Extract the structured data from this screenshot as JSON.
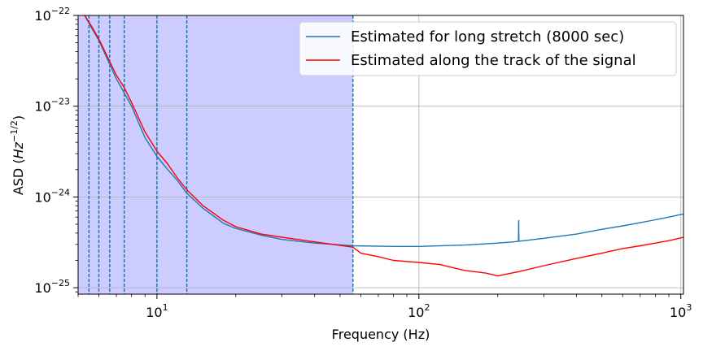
{
  "chart_data": {
    "type": "line",
    "xlabel": "Frequency (Hz)",
    "ylabel": {
      "base": "ASD (",
      "hz": "Hz",
      "exp": "−1/2",
      "close": ")"
    },
    "xscale": "log",
    "yscale": "log",
    "xlim": [
      5,
      1024
    ],
    "ylim": [
      8.5e-26,
      1e-22
    ],
    "x_ticks": [
      {
        "value": 10,
        "base": "10",
        "exp": "1"
      },
      {
        "value": 100,
        "base": "10",
        "exp": "2"
      },
      {
        "value": 1000,
        "base": "10",
        "exp": "3"
      }
    ],
    "y_ticks": [
      {
        "value": 1e-25,
        "base": "10",
        "exp": "−25"
      },
      {
        "value": 1e-24,
        "base": "10",
        "exp": "−24"
      },
      {
        "value": 1e-23,
        "base": "10",
        "exp": "−23"
      },
      {
        "value": 1e-22,
        "base": "10",
        "exp": "−22"
      }
    ],
    "grid": true,
    "legend_position": "top-right",
    "shaded_band": {
      "x_from": 5,
      "x_to": 56,
      "color": "#ccccff"
    },
    "vertical_lines": [
      5.5,
      6,
      6.6,
      7.5,
      10,
      13,
      56
    ],
    "vline_color": "#1f77b4",
    "series": [
      {
        "name": "Estimated for long stretch (8000 sec)",
        "color": "#1f77b4",
        "points": [
          [
            5.3,
            1e-22
          ],
          [
            5.6,
            7.5e-23
          ],
          [
            6.0,
            5.3e-23
          ],
          [
            6.5,
            3.2e-23
          ],
          [
            7.0,
            2e-23
          ],
          [
            7.5,
            1.4e-23
          ],
          [
            8.0,
            1e-23
          ],
          [
            9.0,
            4.5e-24
          ],
          [
            10,
            2.8e-24
          ],
          [
            11,
            2e-24
          ],
          [
            12,
            1.5e-24
          ],
          [
            13,
            1.1e-24
          ],
          [
            15,
            7.5e-25
          ],
          [
            18,
            5.1e-25
          ],
          [
            20,
            4.5e-25
          ],
          [
            25,
            3.8e-25
          ],
          [
            30,
            3.4e-25
          ],
          [
            40,
            3.1e-25
          ],
          [
            56,
            2.9e-25
          ],
          [
            80,
            2.85e-25
          ],
          [
            100,
            2.85e-25
          ],
          [
            150,
            2.95e-25
          ],
          [
            200,
            3.1e-25
          ],
          [
            230,
            3.2e-25
          ],
          [
            240,
            3.25e-25
          ],
          [
            240.5,
            5.5e-25
          ],
          [
            241,
            3.25e-25
          ],
          [
            300,
            3.5e-25
          ],
          [
            400,
            3.9e-25
          ],
          [
            500,
            4.4e-25
          ],
          [
            600,
            4.8e-25
          ],
          [
            700,
            5.2e-25
          ],
          [
            800,
            5.6e-25
          ],
          [
            900,
            6e-25
          ],
          [
            1024,
            6.5e-25
          ]
        ]
      },
      {
        "name": "Estimated along the track of the signal",
        "color": "#ff0000",
        "points": [
          [
            5.3,
            1e-22
          ],
          [
            5.6,
            7.8e-23
          ],
          [
            6.0,
            5.5e-23
          ],
          [
            6.5,
            3.4e-23
          ],
          [
            7.0,
            2.2e-23
          ],
          [
            7.5,
            1.6e-23
          ],
          [
            8.0,
            1.1e-23
          ],
          [
            9.0,
            5.2e-24
          ],
          [
            10,
            3.2e-24
          ],
          [
            11,
            2.3e-24
          ],
          [
            12,
            1.6e-24
          ],
          [
            13,
            1.2e-24
          ],
          [
            15,
            8e-25
          ],
          [
            18,
            5.5e-25
          ],
          [
            20,
            4.7e-25
          ],
          [
            25,
            3.9e-25
          ],
          [
            30,
            3.6e-25
          ],
          [
            40,
            3.2e-25
          ],
          [
            56,
            2.8e-25
          ],
          [
            60,
            2.4e-25
          ],
          [
            70,
            2.2e-25
          ],
          [
            80,
            2e-25
          ],
          [
            100,
            1.9e-25
          ],
          [
            120,
            1.8e-25
          ],
          [
            150,
            1.55e-25
          ],
          [
            180,
            1.45e-25
          ],
          [
            200,
            1.35e-25
          ],
          [
            240,
            1.5e-25
          ],
          [
            300,
            1.75e-25
          ],
          [
            400,
            2.1e-25
          ],
          [
            500,
            2.4e-25
          ],
          [
            600,
            2.7e-25
          ],
          [
            700,
            2.9e-25
          ],
          [
            800,
            3.1e-25
          ],
          [
            900,
            3.3e-25
          ],
          [
            1024,
            3.6e-25
          ]
        ]
      }
    ]
  }
}
